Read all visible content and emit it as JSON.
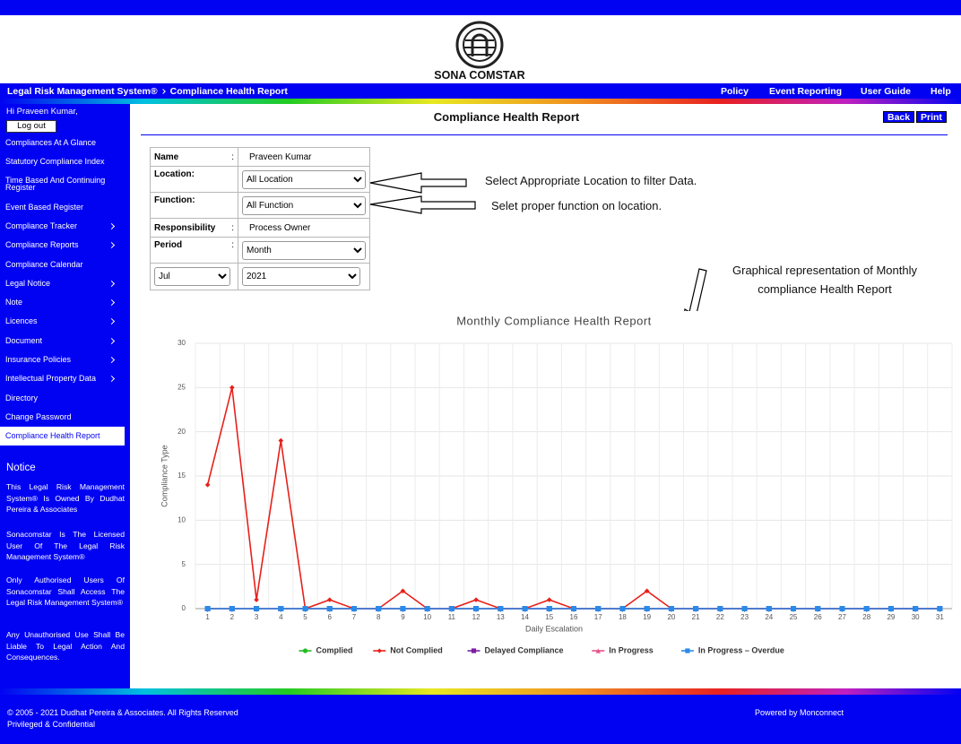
{
  "header": {
    "logo_text": "SONA COMSTAR"
  },
  "nav": {
    "breadcrumb": [
      "Legal Risk Management System®",
      "Compliance Health Report"
    ],
    "links": [
      "Policy",
      "Event Reporting",
      "User Guide",
      "Help"
    ]
  },
  "sidebar": {
    "greeting": "Hi Praveen Kumar,",
    "logout": "Log out",
    "menu": [
      {
        "label": "Compliances At A Glance",
        "submenu": false
      },
      {
        "label": "Statutory Compliance Index",
        "submenu": false
      },
      {
        "label": "Time Based And Continuing Register",
        "submenu": false
      },
      {
        "label": "Event Based Register",
        "submenu": false
      },
      {
        "label": "Compliance Tracker",
        "submenu": true
      },
      {
        "label": "Compliance Reports",
        "submenu": true
      },
      {
        "label": "Compliance Calendar",
        "submenu": false
      },
      {
        "label": "Legal Notice",
        "submenu": true
      },
      {
        "label": "Note",
        "submenu": true
      },
      {
        "label": "Licences",
        "submenu": true
      },
      {
        "label": "Document",
        "submenu": true
      },
      {
        "label": "Insurance Policies",
        "submenu": true
      },
      {
        "label": "Intellectual Property Data",
        "submenu": true
      },
      {
        "label": "Directory",
        "submenu": false
      },
      {
        "label": "Change Password",
        "submenu": false
      },
      {
        "label": "Compliance Health Report",
        "submenu": false,
        "active": true
      }
    ],
    "notice_title": "Notice",
    "notices": [
      "This Legal Risk Management System® Is Owned By Dudhat Pereira & Associates",
      "Sonacomstar Is The Licensed User Of The Legal Risk Management System®",
      "Only Authorised Users Of Sonacomstar Shall Access The Legal Risk Management System®",
      "Any Unauthorised Use Shall Be Liable To Legal Action And Consequences."
    ]
  },
  "page": {
    "title": "Compliance Health Report",
    "buttons": [
      "Back",
      "Print"
    ]
  },
  "form": {
    "name_label": "Name",
    "name_sep": ":",
    "name_value": "Praveen Kumar",
    "location_label": "Location:",
    "location_value": "All Location",
    "function_label": "Function:",
    "function_value": "All Function",
    "responsibility_label": "Responsibility",
    "responsibility_sep": ":",
    "responsibility_value": "Process Owner",
    "period_label": "Period",
    "period_sep": ":",
    "period_value": "Month",
    "month_value": "Jul",
    "year_value": "2021"
  },
  "annotations": [
    "Select Appropriate Location to filter Data.",
    "Selet proper function on location.",
    "Graphical representation of Monthly",
    "compliance Health Report"
  ],
  "chart_data": {
    "type": "line",
    "title": "Monthly Compliance Health Report",
    "x_label": "Daily Escalation",
    "y_label": "Compliance Type",
    "categories": [
      "1",
      "2",
      "3",
      "4",
      "5",
      "6",
      "7",
      "8",
      "9",
      "10",
      "11",
      "12",
      "13",
      "14",
      "15",
      "16",
      "17",
      "18",
      "19",
      "20",
      "21",
      "22",
      "23",
      "24",
      "25",
      "26",
      "27",
      "28",
      "29",
      "30",
      "31"
    ],
    "ylim": [
      0,
      30
    ],
    "yticks": [
      0,
      5,
      10,
      15,
      20,
      25,
      30
    ],
    "grid": true,
    "legend": "bottom",
    "series": [
      {
        "name": "Complied",
        "color": "#22bb22",
        "marker": "circle",
        "values": [
          0,
          0,
          0,
          0,
          0,
          0,
          0,
          0,
          0,
          0,
          0,
          0,
          0,
          0,
          0,
          0,
          0,
          0,
          0,
          0,
          0,
          0,
          0,
          0,
          0,
          0,
          0,
          0,
          0,
          0,
          0
        ]
      },
      {
        "name": "Not Complied",
        "color": "#e8201a",
        "marker": "diamond",
        "values": [
          14,
          25,
          1,
          19,
          0,
          1,
          0,
          0,
          2,
          0,
          0,
          1,
          0,
          0,
          1,
          0,
          0,
          0,
          2,
          0,
          0,
          0,
          0,
          0,
          0,
          0,
          0,
          0,
          0,
          0,
          0
        ]
      },
      {
        "name": "Delayed Compliance",
        "color": "#7a1fa2",
        "marker": "square",
        "values": [
          0,
          0,
          0,
          0,
          0,
          0,
          0,
          0,
          0,
          0,
          0,
          0,
          0,
          0,
          0,
          0,
          0,
          0,
          0,
          0,
          0,
          0,
          0,
          0,
          0,
          0,
          0,
          0,
          0,
          0,
          0
        ]
      },
      {
        "name": "In Progress",
        "color": "#e8508a",
        "marker": "triangle",
        "values": [
          0,
          0,
          0,
          0,
          0,
          0,
          0,
          0,
          0,
          0,
          0,
          0,
          0,
          0,
          0,
          0,
          0,
          0,
          0,
          0,
          0,
          0,
          0,
          0,
          0,
          0,
          0,
          0,
          0,
          0,
          0
        ]
      },
      {
        "name": "In Progress – Overdue",
        "color": "#2a8ae8",
        "marker": "square",
        "values": [
          0,
          0,
          0,
          0,
          0,
          0,
          0,
          0,
          0,
          0,
          0,
          0,
          0,
          0,
          0,
          0,
          0,
          0,
          0,
          0,
          0,
          0,
          0,
          0,
          0,
          0,
          0,
          0,
          0,
          0,
          0
        ]
      }
    ]
  },
  "footer": {
    "copyright": "© 2005 - 2021 Dudhat Pereira & Associates. All Rights Reserved",
    "confidential": "Privileged & Confidential",
    "powered_by": "Powered by Monconnect"
  }
}
